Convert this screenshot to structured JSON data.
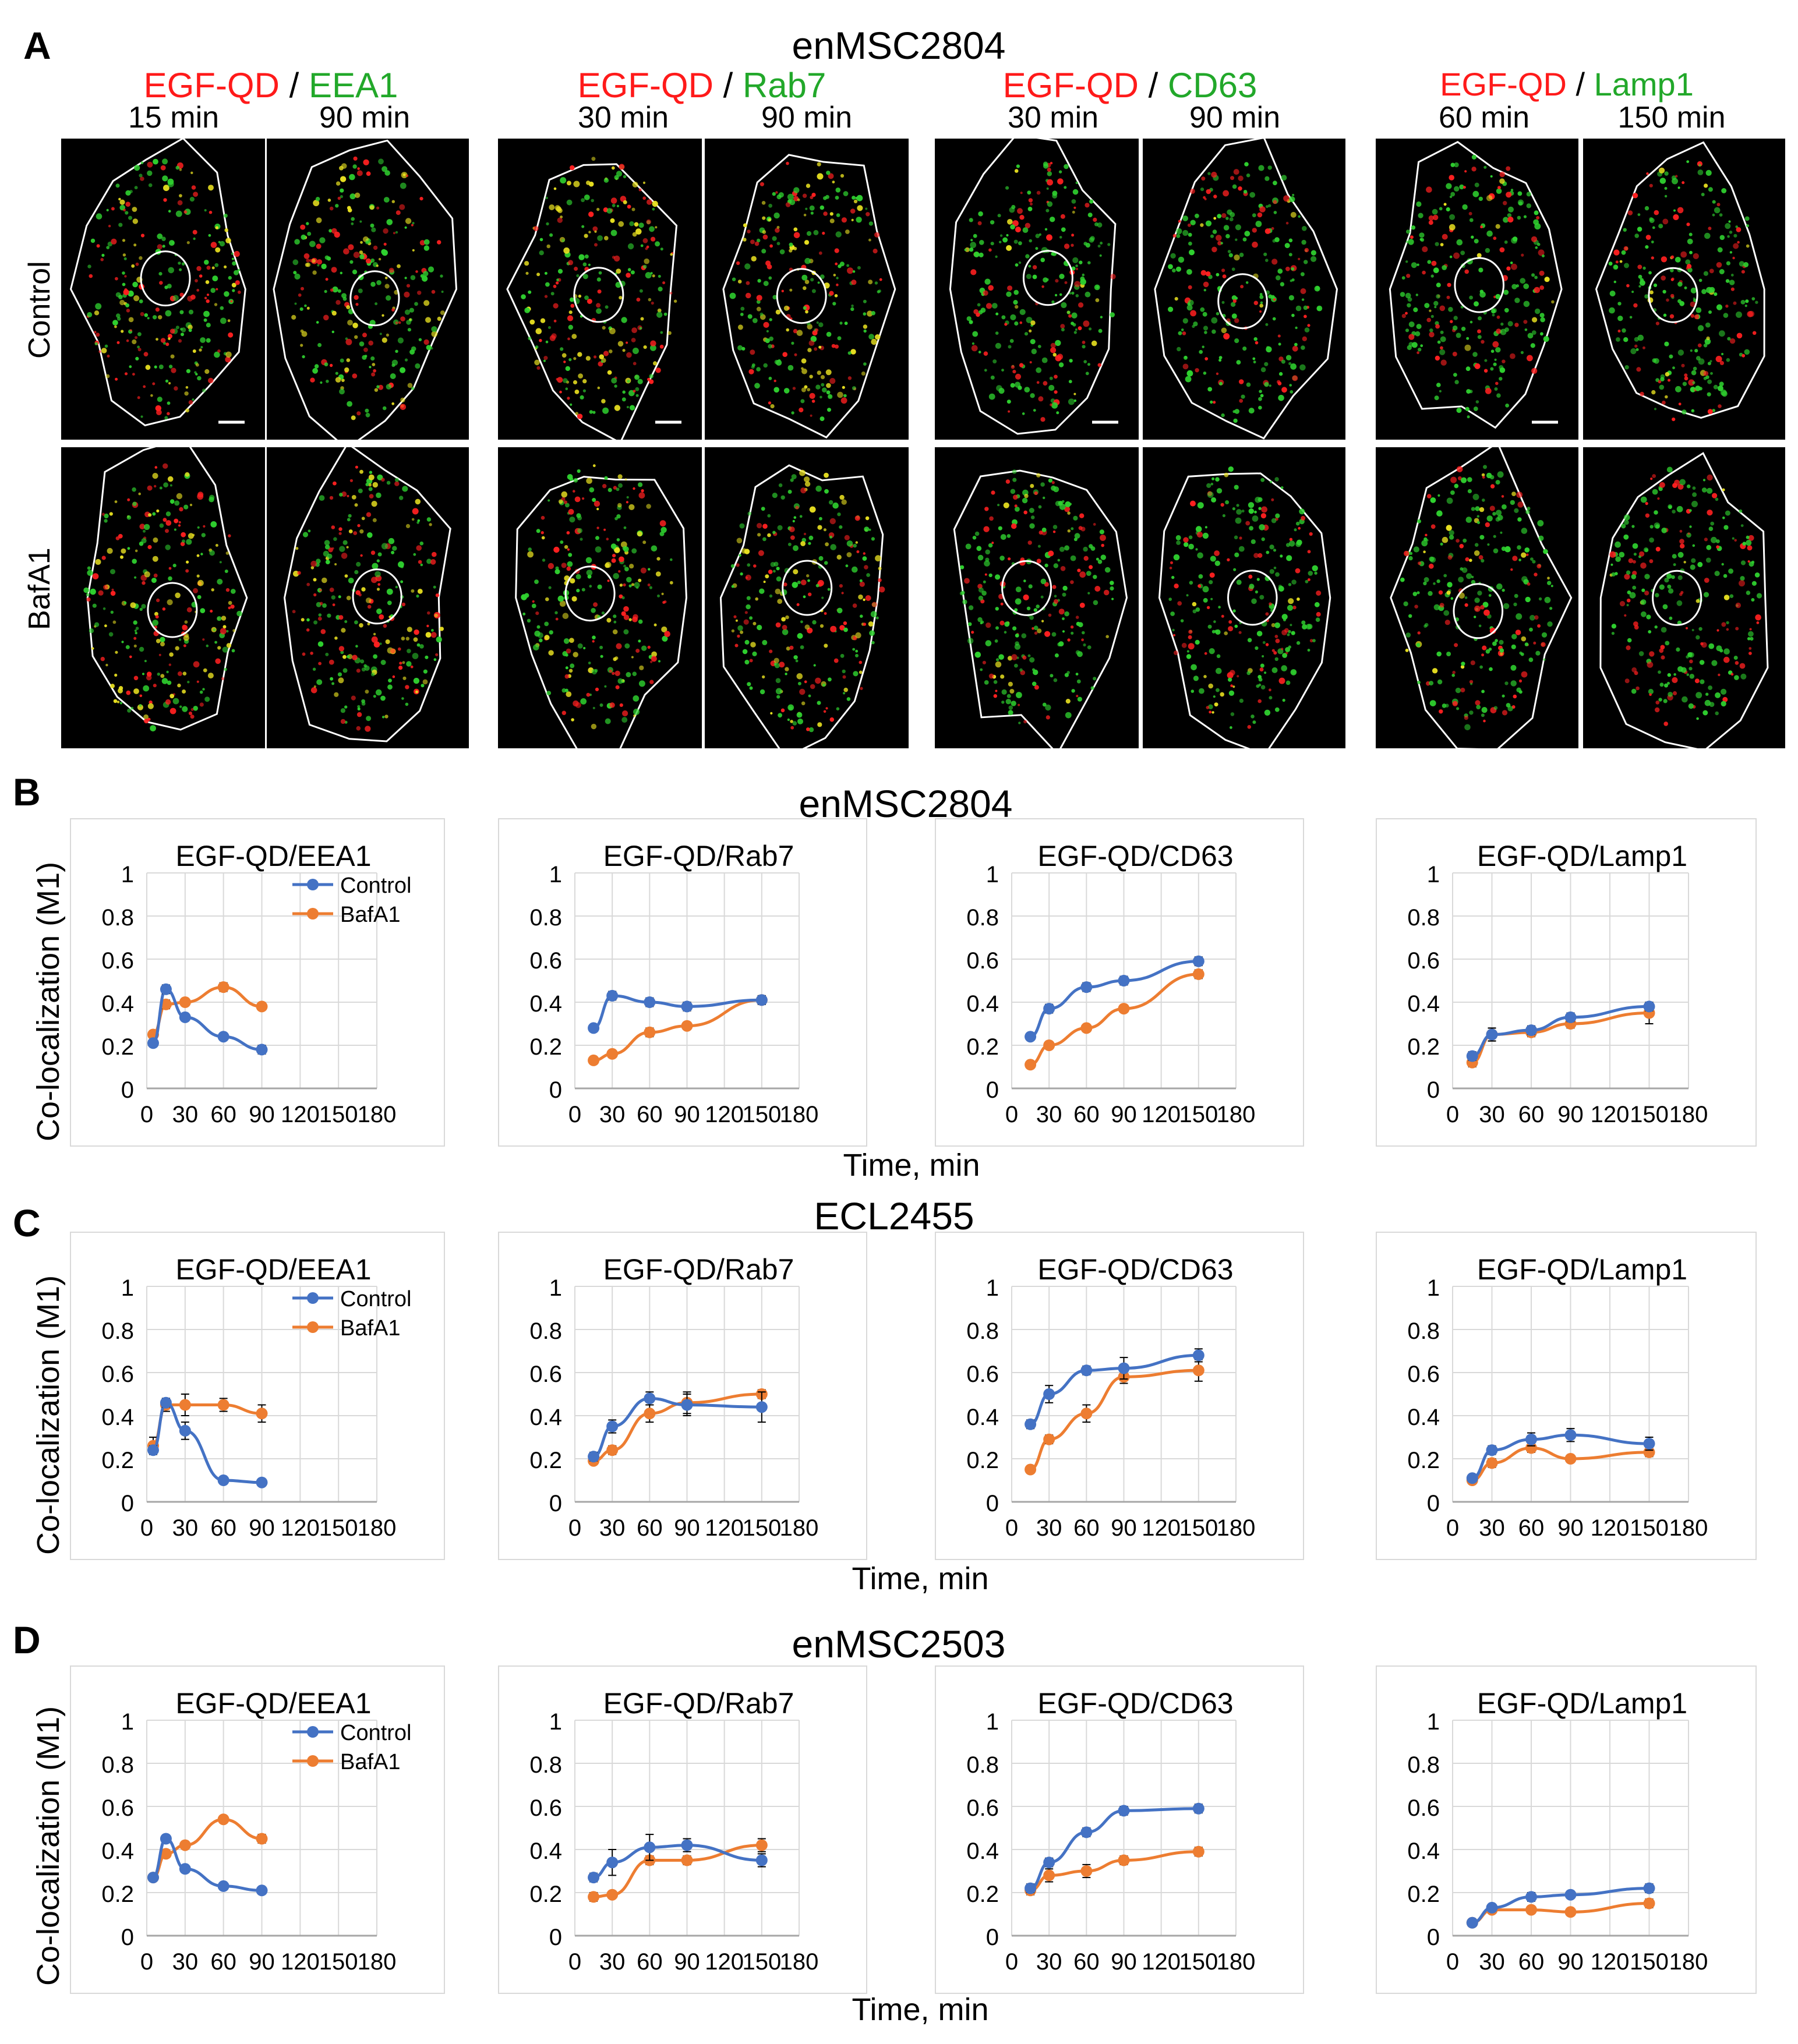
{
  "panelA": {
    "letter": "A",
    "cell_line": "enMSC2804",
    "row_labels": [
      "Control",
      "BafA1"
    ],
    "groups": [
      {
        "marker_qd": "EGF-QD",
        "separator": " / ",
        "marker": "EEA1",
        "times": [
          "15 min",
          "90 min"
        ]
      },
      {
        "marker_qd": "EGF-QD",
        "separator": " / ",
        "marker": "Rab7",
        "times": [
          "30 min",
          "90 min"
        ]
      },
      {
        "marker_qd": "EGF-QD",
        "separator": " / ",
        "marker": "CD63",
        "times": [
          "30 min",
          "90 min"
        ]
      },
      {
        "marker_qd": "EGF-QD",
        "separator": " / ",
        "marker": "Lamp1",
        "times": [
          "60 min",
          "150 min"
        ]
      }
    ]
  },
  "colors": {
    "control": "#4472c4",
    "bafa1": "#ed7d31",
    "axis": "#d9d9d9",
    "red_label": "#ff1a1a",
    "green_label": "#22a82a"
  },
  "ylabel": "Co-localization (M1)",
  "xlabel": "Time, min",
  "legend": {
    "control": "Control",
    "bafa1": "BafA1"
  },
  "sections": [
    {
      "letter": "B",
      "cell_line": "enMSC2804"
    },
    {
      "letter": "C",
      "cell_line": "ECL2455"
    },
    {
      "letter": "D",
      "cell_line": "enMSC2503"
    }
  ],
  "chart_data": [
    {
      "type": "line",
      "section": "B",
      "title": "EGF-QD/EEA1",
      "xlim": [
        0,
        180
      ],
      "ylim": [
        0,
        1
      ],
      "xticks": [
        0,
        30,
        60,
        90,
        120,
        150,
        180
      ],
      "yticks": [
        0,
        0.2,
        0.4,
        0.6,
        0.8,
        1
      ],
      "legend": true,
      "series": [
        {
          "name": "Control",
          "x": [
            5,
            15,
            30,
            60,
            90
          ],
          "values": [
            0.21,
            0.46,
            0.33,
            0.24,
            0.18
          ],
          "err": [
            0.01,
            0.02,
            0.01,
            0.01,
            0.02
          ]
        },
        {
          "name": "BafA1",
          "x": [
            5,
            15,
            30,
            60,
            90
          ],
          "values": [
            0.25,
            0.39,
            0.4,
            0.47,
            0.38
          ],
          "err": [
            0.01,
            0.02,
            0.01,
            0.02,
            0.01
          ]
        }
      ]
    },
    {
      "type": "line",
      "section": "B",
      "title": "EGF-QD/Rab7",
      "xlim": [
        0,
        180
      ],
      "ylim": [
        0,
        1
      ],
      "xticks": [
        0,
        30,
        60,
        90,
        120,
        150,
        180
      ],
      "yticks": [
        0,
        0.2,
        0.4,
        0.6,
        0.8,
        1
      ],
      "legend": false,
      "series": [
        {
          "name": "Control",
          "x": [
            15,
            30,
            60,
            90,
            150
          ],
          "values": [
            0.28,
            0.43,
            0.4,
            0.38,
            0.41
          ],
          "err": [
            0.01,
            0.02,
            0.02,
            0.02,
            0.02
          ]
        },
        {
          "name": "BafA1",
          "x": [
            15,
            30,
            60,
            90,
            150
          ],
          "values": [
            0.13,
            0.16,
            0.26,
            0.29,
            0.41
          ],
          "err": [
            0.01,
            0.01,
            0.02,
            0.01,
            0.02
          ]
        }
      ]
    },
    {
      "type": "line",
      "section": "B",
      "title": "EGF-QD/CD63",
      "xlim": [
        0,
        180
      ],
      "ylim": [
        0,
        1
      ],
      "xticks": [
        0,
        30,
        60,
        90,
        120,
        150,
        180
      ],
      "yticks": [
        0,
        0.2,
        0.4,
        0.6,
        0.8,
        1
      ],
      "legend": false,
      "series": [
        {
          "name": "Control",
          "x": [
            15,
            30,
            60,
            90,
            150
          ],
          "values": [
            0.24,
            0.37,
            0.47,
            0.5,
            0.59
          ],
          "err": [
            0.01,
            0.02,
            0.02,
            0.02,
            0.02
          ]
        },
        {
          "name": "BafA1",
          "x": [
            15,
            30,
            60,
            90,
            150
          ],
          "values": [
            0.11,
            0.2,
            0.28,
            0.37,
            0.53
          ],
          "err": [
            0.01,
            0.01,
            0.01,
            0.01,
            0.02
          ]
        }
      ]
    },
    {
      "type": "line",
      "section": "B",
      "title": "EGF-QD/Lamp1",
      "xlim": [
        0,
        180
      ],
      "ylim": [
        0,
        1
      ],
      "xticks": [
        0,
        30,
        60,
        90,
        120,
        150,
        180
      ],
      "yticks": [
        0,
        0.2,
        0.4,
        0.6,
        0.8,
        1
      ],
      "legend": false,
      "series": [
        {
          "name": "Control",
          "x": [
            15,
            30,
            60,
            90,
            150
          ],
          "values": [
            0.15,
            0.25,
            0.27,
            0.33,
            0.38
          ],
          "err": [
            0.02,
            0.03,
            0.02,
            0.02,
            0.02
          ]
        },
        {
          "name": "BafA1",
          "x": [
            15,
            30,
            60,
            90,
            150
          ],
          "values": [
            0.12,
            0.25,
            0.26,
            0.3,
            0.35
          ],
          "err": [
            0.02,
            0.03,
            0.02,
            0.02,
            0.05
          ]
        }
      ]
    },
    {
      "type": "line",
      "section": "C",
      "title": "EGF-QD/EEA1",
      "xlim": [
        0,
        180
      ],
      "ylim": [
        0,
        1
      ],
      "xticks": [
        0,
        30,
        60,
        90,
        120,
        150,
        180
      ],
      "yticks": [
        0,
        0.2,
        0.4,
        0.6,
        0.8,
        1
      ],
      "legend": true,
      "series": [
        {
          "name": "Control",
          "x": [
            5,
            15,
            30,
            60,
            90
          ],
          "values": [
            0.24,
            0.46,
            0.33,
            0.1,
            0.09
          ],
          "err": [
            0.02,
            0.02,
            0.04,
            0.01,
            0.01
          ]
        },
        {
          "name": "BafA1",
          "x": [
            5,
            15,
            30,
            60,
            90
          ],
          "values": [
            0.26,
            0.45,
            0.45,
            0.45,
            0.41
          ],
          "err": [
            0.04,
            0.03,
            0.05,
            0.03,
            0.04
          ]
        }
      ]
    },
    {
      "type": "line",
      "section": "C",
      "title": "EGF-QD/Rab7",
      "xlim": [
        0,
        180
      ],
      "ylim": [
        0,
        1
      ],
      "xticks": [
        0,
        30,
        60,
        90,
        120,
        150,
        180
      ],
      "yticks": [
        0,
        0.2,
        0.4,
        0.6,
        0.8,
        1
      ],
      "legend": false,
      "series": [
        {
          "name": "Control",
          "x": [
            15,
            30,
            60,
            90,
            150
          ],
          "values": [
            0.21,
            0.35,
            0.48,
            0.45,
            0.44
          ],
          "err": [
            0.02,
            0.03,
            0.03,
            0.05,
            0.07
          ]
        },
        {
          "name": "BafA1",
          "x": [
            15,
            30,
            60,
            90,
            150
          ],
          "values": [
            0.19,
            0.24,
            0.41,
            0.46,
            0.5
          ],
          "err": [
            0.01,
            0.02,
            0.04,
            0.05,
            0.02
          ]
        }
      ]
    },
    {
      "type": "line",
      "section": "C",
      "title": "EGF-QD/CD63",
      "xlim": [
        0,
        180
      ],
      "ylim": [
        0,
        1
      ],
      "xticks": [
        0,
        30,
        60,
        90,
        120,
        150,
        180
      ],
      "yticks": [
        0,
        0.2,
        0.4,
        0.6,
        0.8,
        1
      ],
      "legend": false,
      "series": [
        {
          "name": "Control",
          "x": [
            15,
            30,
            60,
            90,
            150
          ],
          "values": [
            0.36,
            0.5,
            0.61,
            0.62,
            0.68
          ],
          "err": [
            0.02,
            0.04,
            0.02,
            0.05,
            0.03
          ]
        },
        {
          "name": "BafA1",
          "x": [
            15,
            30,
            60,
            90,
            150
          ],
          "values": [
            0.15,
            0.29,
            0.41,
            0.58,
            0.61
          ],
          "err": [
            0.01,
            0.02,
            0.04,
            0.03,
            0.05
          ]
        }
      ]
    },
    {
      "type": "line",
      "section": "C",
      "title": "EGF-QD/Lamp1",
      "xlim": [
        0,
        180
      ],
      "ylim": [
        0,
        1
      ],
      "xticks": [
        0,
        30,
        60,
        90,
        120,
        150,
        180
      ],
      "yticks": [
        0,
        0.2,
        0.4,
        0.6,
        0.8,
        1
      ],
      "legend": false,
      "series": [
        {
          "name": "Control",
          "x": [
            15,
            30,
            60,
            90,
            150
          ],
          "values": [
            0.11,
            0.24,
            0.29,
            0.31,
            0.27
          ],
          "err": [
            0.01,
            0.02,
            0.03,
            0.03,
            0.03
          ]
        },
        {
          "name": "BafA1",
          "x": [
            15,
            30,
            60,
            90,
            150
          ],
          "values": [
            0.1,
            0.18,
            0.25,
            0.2,
            0.23
          ],
          "err": [
            0.01,
            0.02,
            0.02,
            0.01,
            0.02
          ]
        }
      ]
    },
    {
      "type": "line",
      "section": "D",
      "title": "EGF-QD/EEA1",
      "xlim": [
        0,
        180
      ],
      "ylim": [
        0,
        1
      ],
      "xticks": [
        0,
        30,
        60,
        90,
        120,
        150,
        180
      ],
      "yticks": [
        0,
        0.2,
        0.4,
        0.6,
        0.8,
        1
      ],
      "legend": true,
      "series": [
        {
          "name": "Control",
          "x": [
            5,
            15,
            30,
            60,
            90
          ],
          "values": [
            0.27,
            0.45,
            0.31,
            0.23,
            0.21
          ],
          "err": [
            0.01,
            0.01,
            0.01,
            0.01,
            0.01
          ]
        },
        {
          "name": "BafA1",
          "x": [
            5,
            15,
            30,
            60,
            90
          ],
          "values": [
            0.27,
            0.38,
            0.42,
            0.54,
            0.45
          ],
          "err": [
            0.01,
            0.01,
            0.01,
            0.01,
            0.02
          ]
        }
      ]
    },
    {
      "type": "line",
      "section": "D",
      "title": "EGF-QD/Rab7",
      "xlim": [
        0,
        180
      ],
      "ylim": [
        0,
        1
      ],
      "xticks": [
        0,
        30,
        60,
        90,
        120,
        150,
        180
      ],
      "yticks": [
        0,
        0.2,
        0.4,
        0.6,
        0.8,
        1
      ],
      "legend": false,
      "series": [
        {
          "name": "Control",
          "x": [
            15,
            30,
            60,
            90,
            150
          ],
          "values": [
            0.27,
            0.34,
            0.41,
            0.42,
            0.35
          ],
          "err": [
            0.02,
            0.06,
            0.06,
            0.03,
            0.03
          ]
        },
        {
          "name": "BafA1",
          "x": [
            15,
            30,
            60,
            90,
            150
          ],
          "values": [
            0.18,
            0.19,
            0.35,
            0.35,
            0.42
          ],
          "err": [
            0.02,
            0.01,
            0.02,
            0.02,
            0.03
          ]
        }
      ]
    },
    {
      "type": "line",
      "section": "D",
      "title": "EGF-QD/CD63",
      "xlim": [
        0,
        180
      ],
      "ylim": [
        0,
        1
      ],
      "xticks": [
        0,
        30,
        60,
        90,
        120,
        150,
        180
      ],
      "yticks": [
        0,
        0.2,
        0.4,
        0.6,
        0.8,
        1
      ],
      "legend": false,
      "series": [
        {
          "name": "Control",
          "x": [
            15,
            30,
            60,
            90,
            150
          ],
          "values": [
            0.22,
            0.34,
            0.48,
            0.58,
            0.59
          ],
          "err": [
            0.02,
            0.02,
            0.02,
            0.02,
            0.02
          ]
        },
        {
          "name": "BafA1",
          "x": [
            15,
            30,
            60,
            90,
            150
          ],
          "values": [
            0.21,
            0.28,
            0.3,
            0.35,
            0.39
          ],
          "err": [
            0.02,
            0.03,
            0.03,
            0.02,
            0.02
          ]
        }
      ]
    },
    {
      "type": "line",
      "section": "D",
      "title": "EGF-QD/Lamp1",
      "xlim": [
        0,
        180
      ],
      "ylim": [
        0,
        1
      ],
      "xticks": [
        0,
        30,
        60,
        90,
        120,
        150,
        180
      ],
      "yticks": [
        0,
        0.2,
        0.4,
        0.6,
        0.8,
        1
      ],
      "legend": false,
      "series": [
        {
          "name": "Control",
          "x": [
            15,
            30,
            60,
            90,
            150
          ],
          "values": [
            0.06,
            0.13,
            0.18,
            0.19,
            0.22
          ],
          "err": [
            0.01,
            0.01,
            0.02,
            0.01,
            0.02
          ]
        },
        {
          "name": "BafA1",
          "x": [
            15,
            30,
            60,
            90,
            150
          ],
          "values": [
            0.06,
            0.12,
            0.12,
            0.11,
            0.15
          ],
          "err": [
            0.01,
            0.01,
            0.01,
            0.01,
            0.02
          ]
        }
      ]
    }
  ]
}
